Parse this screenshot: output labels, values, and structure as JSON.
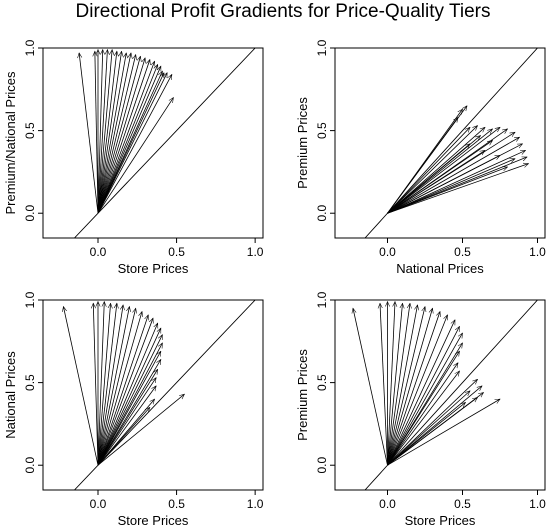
{
  "title": "Directional Profit Gradients for Price-Quality Tiers",
  "chart_data": [
    {
      "type": "vector-field",
      "xlabel": "Store Prices",
      "ylabel": "Premium/National Prices",
      "xlim": [
        -0.35,
        1.05
      ],
      "ylim": [
        -0.15,
        1.0
      ],
      "xticks": [
        "0.0",
        "0.5",
        "1.0"
      ],
      "yticks": [
        "0.0",
        "0.5",
        "1.0"
      ],
      "reference_line": "y = x",
      "origin": [
        0.0,
        0.0
      ],
      "vectors_endpoints": [
        [
          -0.12,
          0.97
        ],
        [
          -0.02,
          0.98
        ],
        [
          0.0,
          0.99
        ],
        [
          0.03,
          0.99
        ],
        [
          0.06,
          0.99
        ],
        [
          0.09,
          0.99
        ],
        [
          0.12,
          0.98
        ],
        [
          0.15,
          0.98
        ],
        [
          0.18,
          0.97
        ],
        [
          0.21,
          0.97
        ],
        [
          0.24,
          0.96
        ],
        [
          0.27,
          0.95
        ],
        [
          0.3,
          0.94
        ],
        [
          0.33,
          0.93
        ],
        [
          0.36,
          0.92
        ],
        [
          0.38,
          0.9
        ],
        [
          0.4,
          0.89
        ],
        [
          0.41,
          0.86
        ],
        [
          0.42,
          0.85
        ],
        [
          0.44,
          0.85
        ],
        [
          0.47,
          0.84
        ],
        [
          0.48,
          0.7
        ]
      ]
    },
    {
      "type": "vector-field",
      "xlabel": "National Prices",
      "ylabel": "Premium Prices",
      "xlim": [
        -0.35,
        1.05
      ],
      "ylim": [
        -0.15,
        1.0
      ],
      "xticks": [
        "0.0",
        "0.5",
        "1.0"
      ],
      "yticks": [
        "0.0",
        "0.5",
        "1.0"
      ],
      "reference_line": "y = x",
      "origin": [
        0.0,
        0.0
      ],
      "vectors_endpoints": [
        [
          0.47,
          0.58
        ],
        [
          0.5,
          0.63
        ],
        [
          0.53,
          0.65
        ],
        [
          0.55,
          0.52
        ],
        [
          0.6,
          0.53
        ],
        [
          0.65,
          0.52
        ],
        [
          0.7,
          0.51
        ],
        [
          0.75,
          0.52
        ],
        [
          0.8,
          0.51
        ],
        [
          0.85,
          0.49
        ],
        [
          0.88,
          0.46
        ],
        [
          0.9,
          0.42
        ],
        [
          0.92,
          0.38
        ],
        [
          0.93,
          0.34
        ],
        [
          0.94,
          0.3
        ],
        [
          0.85,
          0.33
        ],
        [
          0.75,
          0.35
        ],
        [
          0.65,
          0.38
        ],
        [
          0.55,
          0.42
        ],
        [
          0.8,
          0.28
        ],
        [
          0.62,
          0.47
        ],
        [
          0.7,
          0.44
        ]
      ]
    },
    {
      "type": "vector-field",
      "xlabel": "Store Prices",
      "ylabel": "National Prices",
      "xlim": [
        -0.35,
        1.05
      ],
      "ylim": [
        -0.15,
        1.0
      ],
      "xticks": [
        "0.0",
        "0.5",
        "1.0"
      ],
      "yticks": [
        "0.0",
        "0.5",
        "1.0"
      ],
      "reference_line": "y = x",
      "origin": [
        0.0,
        0.0
      ],
      "vectors_endpoints": [
        [
          -0.22,
          0.96
        ],
        [
          -0.03,
          0.98
        ],
        [
          0.0,
          0.99
        ],
        [
          0.04,
          0.99
        ],
        [
          0.08,
          0.98
        ],
        [
          0.12,
          0.98
        ],
        [
          0.16,
          0.97
        ],
        [
          0.2,
          0.96
        ],
        [
          0.24,
          0.95
        ],
        [
          0.28,
          0.93
        ],
        [
          0.32,
          0.91
        ],
        [
          0.35,
          0.89
        ],
        [
          0.38,
          0.86
        ],
        [
          0.4,
          0.83
        ],
        [
          0.41,
          0.79
        ],
        [
          0.41,
          0.74
        ],
        [
          0.4,
          0.69
        ],
        [
          0.4,
          0.64
        ],
        [
          0.38,
          0.58
        ],
        [
          0.37,
          0.53
        ],
        [
          0.37,
          0.48
        ],
        [
          0.36,
          0.4
        ],
        [
          0.33,
          0.35
        ],
        [
          0.55,
          0.43
        ]
      ]
    },
    {
      "type": "vector-field",
      "xlabel": "Store Prices",
      "ylabel": "Premium Prices",
      "xlim": [
        -0.35,
        1.05
      ],
      "ylim": [
        -0.15,
        1.0
      ],
      "xticks": [
        "0.0",
        "0.5",
        "1.0"
      ],
      "yticks": [
        "0.0",
        "0.5",
        "1.0"
      ],
      "reference_line": "y = x",
      "origin": [
        0.0,
        0.0
      ],
      "vectors_endpoints": [
        [
          -0.23,
          0.95
        ],
        [
          -0.05,
          0.98
        ],
        [
          0.0,
          0.99
        ],
        [
          0.05,
          0.99
        ],
        [
          0.1,
          0.98
        ],
        [
          0.15,
          0.98
        ],
        [
          0.2,
          0.97
        ],
        [
          0.25,
          0.96
        ],
        [
          0.3,
          0.95
        ],
        [
          0.35,
          0.93
        ],
        [
          0.4,
          0.91
        ],
        [
          0.45,
          0.88
        ],
        [
          0.48,
          0.84
        ],
        [
          0.5,
          0.8
        ],
        [
          0.5,
          0.74
        ],
        [
          0.48,
          0.69
        ],
        [
          0.47,
          0.62
        ],
        [
          0.48,
          0.57
        ],
        [
          0.6,
          0.52
        ],
        [
          0.63,
          0.48
        ],
        [
          0.64,
          0.44
        ],
        [
          0.6,
          0.41
        ],
        [
          0.75,
          0.4
        ],
        [
          0.55,
          0.45
        ],
        [
          0.52,
          0.38
        ]
      ]
    }
  ]
}
